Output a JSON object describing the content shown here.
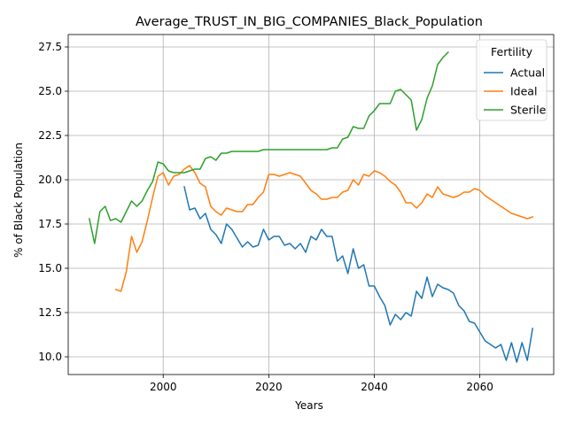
{
  "chart_data": {
    "type": "line",
    "title": "Average_TRUST_IN_BIG_COMPANIES_Black_Population",
    "xlabel": "Years",
    "ylabel": "% of Black Population",
    "xlim": [
      1982,
      2074
    ],
    "ylim": [
      9.0,
      28.2
    ],
    "xticks": [
      2000,
      2020,
      2040,
      2060
    ],
    "yticks": [
      10.0,
      12.5,
      15.0,
      17.5,
      20.0,
      22.5,
      25.0,
      27.5
    ],
    "grid": true,
    "legend": {
      "title": "Fertility",
      "position": "top-right"
    },
    "series": [
      {
        "name": "Actual",
        "color": "#1f77b4",
        "x": [
          2004,
          2005,
          2006,
          2007,
          2008,
          2009,
          2010,
          2011,
          2012,
          2013,
          2014,
          2015,
          2016,
          2017,
          2018,
          2019,
          2020,
          2021,
          2022,
          2023,
          2024,
          2025,
          2026,
          2027,
          2028,
          2029,
          2030,
          2031,
          2032,
          2033,
          2034,
          2035,
          2036,
          2037,
          2038,
          2039,
          2040,
          2041,
          2042,
          2043,
          2044,
          2045,
          2046,
          2047,
          2048,
          2049,
          2050,
          2051,
          2052,
          2053,
          2054,
          2055,
          2056,
          2057,
          2058,
          2059,
          2060,
          2061,
          2062,
          2063,
          2064,
          2065,
          2066,
          2067,
          2068,
          2069,
          2070
        ],
        "y": [
          19.6,
          18.3,
          18.4,
          17.8,
          18.1,
          17.2,
          16.9,
          16.4,
          17.5,
          17.2,
          16.7,
          16.2,
          16.5,
          16.2,
          16.3,
          17.2,
          16.6,
          16.8,
          16.8,
          16.3,
          16.4,
          16.1,
          16.4,
          15.9,
          16.8,
          16.6,
          17.2,
          16.8,
          16.8,
          15.4,
          15.7,
          14.7,
          16.1,
          15.0,
          15.2,
          14.0,
          14.0,
          13.4,
          12.9,
          11.8,
          12.4,
          12.1,
          12.5,
          12.3,
          13.7,
          13.3,
          14.5,
          13.4,
          14.1,
          13.9,
          13.8,
          13.6,
          12.9,
          12.6,
          12.0,
          11.9,
          11.4,
          10.9,
          10.7,
          10.5,
          10.7,
          9.8,
          10.8,
          9.7,
          10.8,
          9.8,
          11.6
        ]
      },
      {
        "name": "Ideal",
        "color": "#ff7f0e",
        "x": [
          1991,
          1992,
          1993,
          1994,
          1995,
          1996,
          1997,
          1998,
          1999,
          2000,
          2001,
          2002,
          2003,
          2004,
          2005,
          2006,
          2007,
          2008,
          2009,
          2010,
          2011,
          2012,
          2013,
          2014,
          2015,
          2016,
          2017,
          2018,
          2019,
          2020,
          2021,
          2022,
          2023,
          2024,
          2025,
          2026,
          2027,
          2028,
          2029,
          2030,
          2031,
          2032,
          2033,
          2034,
          2035,
          2036,
          2037,
          2038,
          2039,
          2040,
          2041,
          2042,
          2043,
          2044,
          2045,
          2046,
          2047,
          2048,
          2049,
          2050,
          2051,
          2052,
          2053,
          2054,
          2055,
          2056,
          2057,
          2058,
          2059,
          2060,
          2061,
          2062,
          2063,
          2064,
          2065,
          2066,
          2067,
          2068,
          2069,
          2070
        ],
        "y": [
          13.8,
          13.7,
          14.8,
          16.8,
          15.9,
          16.5,
          17.7,
          19.0,
          20.2,
          20.4,
          19.7,
          20.2,
          20.3,
          20.6,
          20.8,
          20.4,
          19.8,
          19.6,
          18.5,
          18.2,
          18.0,
          18.4,
          18.3,
          18.2,
          18.2,
          18.6,
          18.6,
          19.0,
          19.3,
          20.3,
          20.3,
          20.2,
          20.3,
          20.4,
          20.3,
          20.2,
          19.8,
          19.4,
          19.2,
          18.9,
          18.9,
          19.0,
          19.0,
          19.3,
          19.4,
          20.0,
          19.7,
          20.3,
          20.2,
          20.5,
          20.4,
          20.2,
          19.9,
          19.7,
          19.3,
          18.7,
          18.7,
          18.4,
          18.7,
          19.2,
          19.0,
          19.6,
          19.2,
          19.1,
          19.0,
          19.1,
          19.3,
          19.3,
          19.5,
          19.4,
          19.1,
          18.9,
          18.7,
          18.5,
          18.3,
          18.1,
          18.0,
          17.9,
          17.8,
          17.9
        ]
      },
      {
        "name": "Sterile",
        "color": "#2ca02c",
        "x": [
          1986,
          1987,
          1988,
          1989,
          1990,
          1991,
          1992,
          1993,
          1994,
          1995,
          1996,
          1997,
          1998,
          1999,
          2000,
          2001,
          2002,
          2003,
          2004,
          2005,
          2006,
          2007,
          2008,
          2009,
          2010,
          2011,
          2012,
          2013,
          2014,
          2015,
          2016,
          2017,
          2018,
          2019,
          2020,
          2021,
          2022,
          2023,
          2024,
          2025,
          2026,
          2027,
          2028,
          2029,
          2030,
          2031,
          2032,
          2033,
          2034,
          2035,
          2036,
          2037,
          2038,
          2039,
          2040,
          2041,
          2042,
          2043,
          2044,
          2045,
          2046,
          2047,
          2048,
          2049,
          2050,
          2051,
          2052,
          2053,
          2054
        ],
        "y": [
          17.8,
          16.4,
          18.2,
          18.5,
          17.7,
          17.8,
          17.6,
          18.2,
          18.8,
          18.5,
          18.8,
          19.4,
          19.9,
          21.0,
          20.9,
          20.5,
          20.4,
          20.4,
          20.4,
          20.5,
          20.6,
          20.6,
          21.2,
          21.3,
          21.1,
          21.5,
          21.5,
          21.6,
          21.6,
          21.6,
          21.6,
          21.6,
          21.6,
          21.7,
          21.7,
          21.7,
          21.7,
          21.7,
          21.7,
          21.7,
          21.7,
          21.7,
          21.7,
          21.7,
          21.7,
          21.7,
          21.8,
          21.8,
          22.3,
          22.4,
          23.0,
          22.9,
          22.9,
          23.6,
          23.9,
          24.3,
          24.3,
          24.3,
          25.0,
          25.1,
          24.8,
          24.5,
          22.8,
          23.4,
          24.6,
          25.3,
          26.5,
          26.9,
          27.2
        ]
      }
    ]
  }
}
